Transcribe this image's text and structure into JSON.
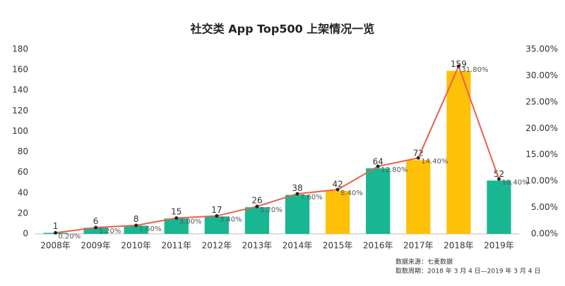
{
  "chart_data": {
    "type": "bar",
    "title": "社交类 App Top500 上架情况一览",
    "categories": [
      "2008年",
      "2009年",
      "2010年",
      "2011年",
      "2012年",
      "2013年",
      "2014年",
      "2015年",
      "2016年",
      "2017年",
      "2018年",
      "2019年"
    ],
    "series": [
      {
        "type": "bar",
        "color": "#18b792",
        "colors": [
          "#18b792",
          "#18b792",
          "#18b792",
          "#18b792",
          "#18b792",
          "#18b792",
          "#18b792",
          "#ffc107",
          "#18b792",
          "#ffc107",
          "#ffc107",
          "#18b792"
        ],
        "values": [
          1,
          6,
          8,
          15,
          17,
          26,
          38,
          42,
          64,
          72,
          159,
          52
        ]
      },
      {
        "type": "line",
        "axis": "y2",
        "color": "#e8604c",
        "values": [
          0.2,
          1.2,
          1.6,
          3.0,
          3.4,
          5.2,
          7.6,
          8.4,
          12.8,
          14.4,
          31.8,
          10.4
        ],
        "value_labels": [
          "0.20%",
          "1.20%",
          "1.60%",
          "3.00%",
          "3.40%",
          "5.20%",
          "7.60%",
          "8.40%",
          "12.80%",
          "14.40%",
          "31.80%",
          "10.40%"
        ]
      }
    ],
    "ylim": [
      0,
      180
    ],
    "yticks": [
      0,
      20,
      40,
      60,
      80,
      100,
      120,
      140,
      160,
      180
    ],
    "y2lim": [
      0,
      35
    ],
    "y2ticks": [
      {
        "value": 0,
        "label": "0.00%"
      },
      {
        "value": 5,
        "label": "5.00%"
      },
      {
        "value": 10,
        "label": "10.00%"
      },
      {
        "value": 15,
        "label": "15.00%"
      },
      {
        "value": 20,
        "label": "20.00%"
      },
      {
        "value": 25,
        "label": "25.00%"
      },
      {
        "value": 30,
        "label": "30.00%"
      },
      {
        "value": 35,
        "label": "35.00%"
      }
    ],
    "grid": false,
    "annotations": [
      "数据来源：七麦数据",
      "取数周期：2018 年 3 月 4 日—2019 年 3 月 4 日"
    ]
  }
}
